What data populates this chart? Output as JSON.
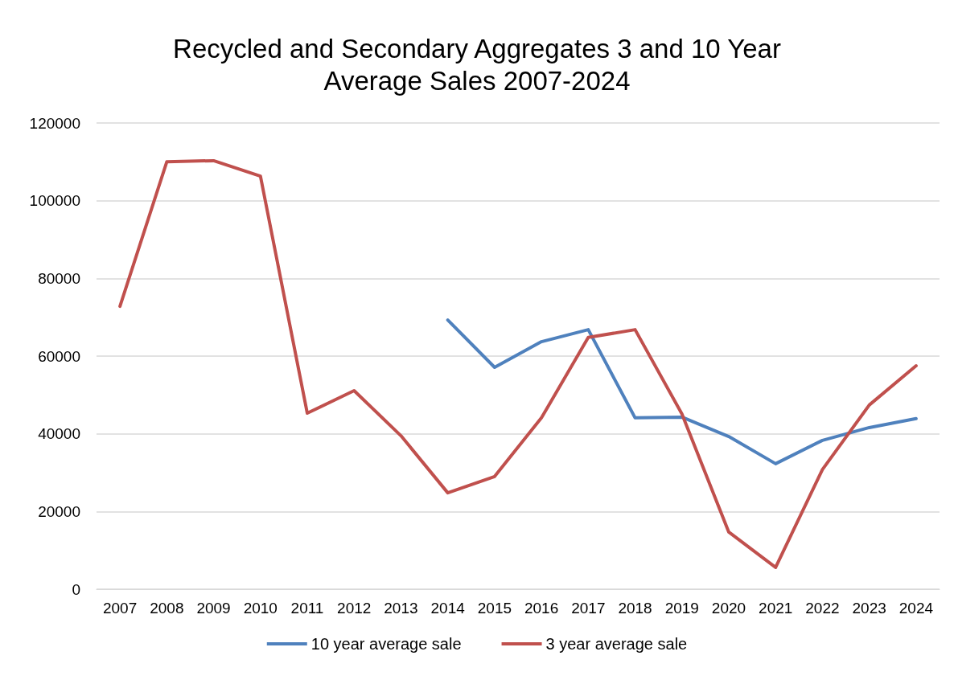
{
  "chart_data": {
    "type": "line",
    "title": "Recycled and Secondary Aggregates 3 and 10 Year\nAverage Sales 2007-2024",
    "categories": [
      "2007",
      "2008",
      "2009",
      "2010",
      "2011",
      "2012",
      "2013",
      "2014",
      "2015",
      "2016",
      "2017",
      "2018",
      "2019",
      "2020",
      "2021",
      "2022",
      "2023",
      "2024"
    ],
    "series": [
      {
        "name": "10 year average sale",
        "color": "#4f81bd",
        "values": [
          null,
          null,
          null,
          null,
          null,
          null,
          null,
          69300,
          57100,
          63700,
          66800,
          44100,
          44300,
          39300,
          32300,
          38300,
          41600,
          43900
        ]
      },
      {
        "name": "3 year average sale",
        "color": "#c0504d",
        "values": [
          72800,
          110000,
          110300,
          106300,
          45300,
          51100,
          39500,
          24800,
          29000,
          44100,
          64800,
          66800,
          45100,
          14700,
          5600,
          30800,
          47400,
          57500
        ]
      }
    ],
    "ylim": [
      0,
      120000
    ],
    "yticks": [
      0,
      20000,
      40000,
      60000,
      80000,
      100000,
      120000
    ],
    "grid": "y",
    "legend": "bottom",
    "marker": "none",
    "line_style": "solid"
  }
}
